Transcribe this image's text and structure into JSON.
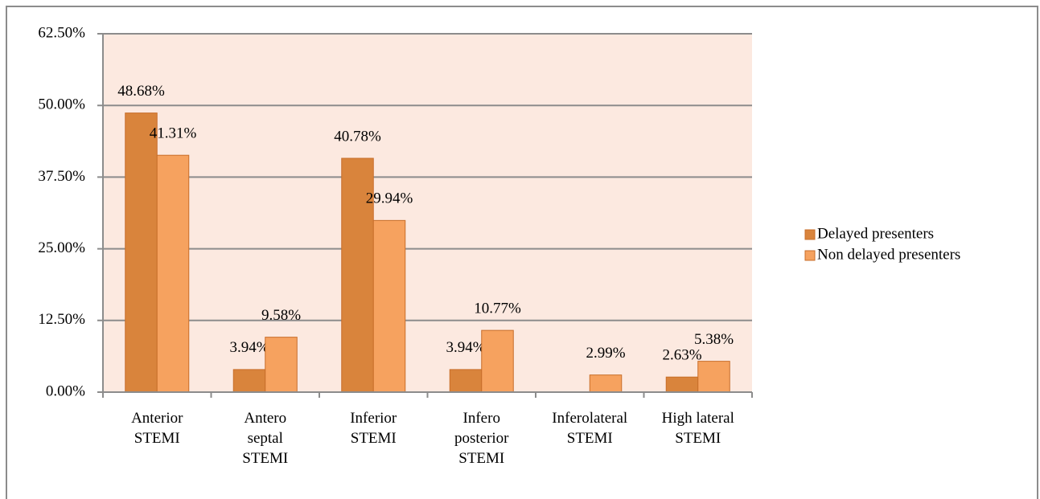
{
  "chart_data": {
    "type": "bar",
    "categories": [
      "Anterior\nSTEMI",
      "Antero\nseptal\nSTEMI",
      "Inferior\nSTEMI",
      "Infero\nposterior\nSTEMI",
      "Inferolateral\nSTEMI",
      "High lateral\nSTEMI"
    ],
    "series": [
      {
        "name": "Delayed presenters",
        "color": "#d9843c",
        "values": [
          48.68,
          3.94,
          40.78,
          3.94,
          null,
          2.63
        ],
        "value_labels": [
          "48.68%",
          "3.94%",
          "40.78%",
          "3.94%",
          null,
          "2.63%"
        ]
      },
      {
        "name": "Non delayed presenters",
        "color": "#f6a25f",
        "values": [
          41.31,
          9.58,
          29.94,
          10.77,
          2.99,
          5.38
        ],
        "value_labels": [
          "41.31%",
          "9.58%",
          "29.94%",
          "10.77%",
          "2.99%",
          "5.38%"
        ]
      }
    ],
    "ylim": [
      0,
      62.5
    ],
    "yticks": [
      {
        "value": 0,
        "label": "0.00%"
      },
      {
        "value": 12.5,
        "label": "12.50%"
      },
      {
        "value": 25,
        "label": "25.00%"
      },
      {
        "value": 37.5,
        "label": "37.50%"
      },
      {
        "value": 50,
        "label": "50.00%"
      },
      {
        "value": 62.5,
        "label": "62.50%"
      }
    ],
    "grid": true,
    "legend": "right"
  }
}
